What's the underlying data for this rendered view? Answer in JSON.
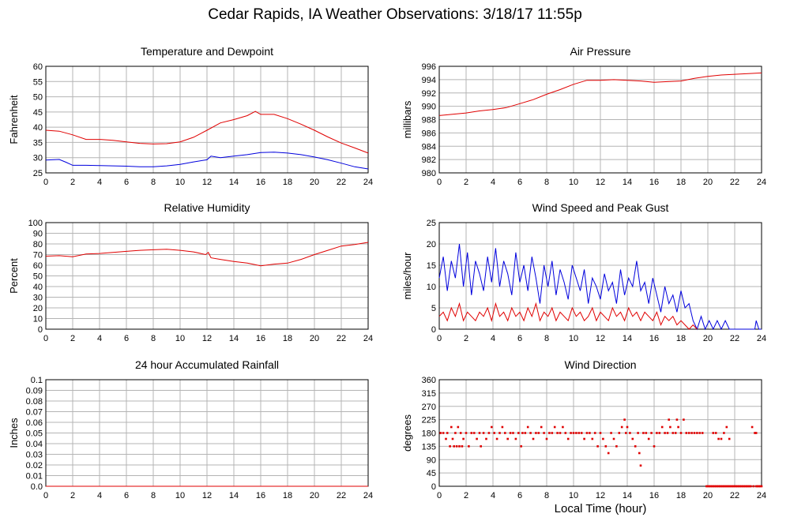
{
  "title": "Cedar Rapids, IA Weather Observations: 3/18/17 11:55p",
  "xlabel": "Local Time (hour)",
  "colors": {
    "red": "#e00000",
    "blue": "#0000dd",
    "grid": "#b4b4b4"
  },
  "chart_data": [
    {
      "type": "line",
      "title": "Temperature and Dewpoint",
      "ylabel": "Fahrenheit",
      "xlim": [
        0,
        24
      ],
      "ylim": [
        25,
        60
      ],
      "yticks": [
        25,
        30,
        35,
        40,
        45,
        50,
        55,
        60
      ],
      "xticks": [
        0,
        2,
        4,
        6,
        8,
        10,
        12,
        14,
        16,
        18,
        20,
        22,
        24
      ],
      "grid": true,
      "series": [
        {
          "color": "#e00000",
          "x": [
            0,
            1,
            2,
            3,
            4,
            5,
            6,
            7,
            8,
            9,
            10,
            11,
            12,
            13,
            14,
            15,
            15.6,
            16,
            17,
            18,
            19,
            20,
            21,
            22,
            23,
            24
          ],
          "y": [
            39,
            38.7,
            37.5,
            36,
            36,
            35.7,
            35.2,
            34.7,
            34.5,
            34.6,
            35.2,
            36.7,
            39,
            41.4,
            42.5,
            43.8,
            45.2,
            44.2,
            44.2,
            42.8,
            41,
            39,
            36.8,
            34.8,
            33.2,
            31.5
          ]
        },
        {
          "color": "#0000dd",
          "x": [
            0,
            1,
            1.5,
            2,
            3,
            4,
            5,
            6,
            7,
            8,
            9,
            10,
            11,
            12,
            12.3,
            13,
            14,
            15,
            16,
            17,
            18,
            19,
            20,
            21,
            22,
            23,
            24
          ],
          "y": [
            29.2,
            29.4,
            28.5,
            27.5,
            27.5,
            27.4,
            27.3,
            27.2,
            27,
            27,
            27.3,
            27.8,
            28.6,
            29.3,
            30.5,
            30,
            30.5,
            31,
            31.7,
            31.8,
            31.5,
            31,
            30.2,
            29.3,
            28.2,
            27,
            26.3
          ]
        }
      ]
    },
    {
      "type": "line",
      "title": "Air Pressure",
      "ylabel": "millibars",
      "xlim": [
        0,
        24
      ],
      "ylim": [
        980,
        996
      ],
      "yticks": [
        980,
        982,
        984,
        986,
        988,
        990,
        992,
        994,
        996
      ],
      "xticks": [
        0,
        2,
        4,
        6,
        8,
        10,
        12,
        14,
        16,
        18,
        20,
        22,
        24
      ],
      "grid": true,
      "series": [
        {
          "color": "#e00000",
          "x": [
            0,
            1,
            2,
            3,
            4,
            5,
            6,
            7,
            8,
            9,
            10,
            11,
            12,
            13,
            14,
            15,
            16,
            17,
            18,
            19,
            20,
            21,
            22,
            23,
            24
          ],
          "y": [
            988.6,
            988.8,
            989,
            989.3,
            989.5,
            989.8,
            990.4,
            991,
            991.8,
            992.5,
            993.3,
            993.9,
            993.9,
            994,
            993.9,
            993.8,
            993.6,
            993.7,
            993.8,
            994.2,
            994.5,
            994.7,
            994.8,
            994.9,
            995
          ]
        }
      ]
    },
    {
      "type": "line",
      "title": "Relative Humidity",
      "ylabel": "Percent",
      "xlim": [
        0,
        24
      ],
      "ylim": [
        0,
        100
      ],
      "yticks": [
        0,
        10,
        20,
        30,
        40,
        50,
        60,
        70,
        80,
        90,
        100
      ],
      "xticks": [
        0,
        2,
        4,
        6,
        8,
        10,
        12,
        14,
        16,
        18,
        20,
        22,
        24
      ],
      "grid": true,
      "series": [
        {
          "color": "#e00000",
          "x": [
            0,
            1,
            2,
            3,
            4,
            5,
            6,
            7,
            8,
            9,
            10,
            11,
            11.9,
            12.1,
            12.3,
            13,
            14,
            15,
            16,
            17,
            18,
            19,
            20,
            21,
            22,
            23,
            24
          ],
          "y": [
            68.5,
            69,
            68,
            70.5,
            71,
            72,
            73,
            74,
            74.5,
            75,
            74,
            72.5,
            70,
            72,
            67,
            65.5,
            63.5,
            62,
            59.5,
            61,
            62,
            65.5,
            70,
            74,
            78,
            79.5,
            81.5
          ]
        }
      ]
    },
    {
      "type": "line",
      "title": "Wind Speed and Peak Gust",
      "ylabel": "miles/hour",
      "xlim": [
        0,
        24
      ],
      "ylim": [
        0,
        25
      ],
      "yticks": [
        0,
        5,
        10,
        15,
        20,
        25
      ],
      "xticks": [
        0,
        2,
        4,
        6,
        8,
        10,
        12,
        14,
        16,
        18,
        20,
        22,
        24
      ],
      "grid": true,
      "series": [
        {
          "color": "#0000dd",
          "x": [
            0,
            0.3,
            0.6,
            0.9,
            1.2,
            1.5,
            1.8,
            2.1,
            2.4,
            2.7,
            3,
            3.3,
            3.6,
            3.9,
            4.2,
            4.5,
            4.8,
            5.1,
            5.4,
            5.7,
            6,
            6.3,
            6.6,
            6.9,
            7.2,
            7.5,
            7.8,
            8.1,
            8.4,
            8.7,
            9,
            9.3,
            9.6,
            9.9,
            10.2,
            10.5,
            10.8,
            11.1,
            11.4,
            11.7,
            12,
            12.3,
            12.6,
            12.9,
            13.2,
            13.5,
            13.8,
            14.1,
            14.4,
            14.7,
            15,
            15.3,
            15.6,
            15.9,
            16.2,
            16.5,
            16.8,
            17.1,
            17.4,
            17.7,
            18,
            18.3,
            18.6,
            18.9,
            19.2,
            19.5,
            19.8,
            20.1,
            20.4,
            20.7,
            21,
            21.3,
            21.6,
            22,
            23,
            23.5,
            23.6,
            23.8,
            24
          ],
          "y": [
            12,
            17,
            9,
            16,
            12,
            20,
            10,
            18,
            8,
            16,
            13,
            9,
            17,
            11,
            19,
            10,
            16,
            13,
            8,
            18,
            11,
            15,
            9,
            17,
            12,
            6,
            15,
            10,
            16,
            8,
            14,
            11,
            7,
            15,
            12,
            9,
            14,
            6,
            12,
            10,
            7,
            13,
            9,
            11,
            6,
            14,
            8,
            12,
            10,
            16,
            9,
            11,
            6,
            12,
            8,
            4,
            10,
            6,
            8,
            4,
            9,
            5,
            6,
            2,
            0,
            3,
            0,
            2,
            0,
            2,
            0,
            2,
            0,
            0,
            0,
            0,
            2,
            0,
            0
          ]
        },
        {
          "color": "#e00000",
          "x": [
            0,
            0.3,
            0.6,
            0.9,
            1.2,
            1.5,
            1.8,
            2.1,
            2.4,
            2.7,
            3,
            3.3,
            3.6,
            3.9,
            4.2,
            4.5,
            4.8,
            5.1,
            5.4,
            5.7,
            6,
            6.3,
            6.6,
            6.9,
            7.2,
            7.5,
            7.8,
            8.1,
            8.4,
            8.7,
            9,
            9.3,
            9.6,
            9.9,
            10.2,
            10.5,
            10.8,
            11.1,
            11.4,
            11.7,
            12,
            12.3,
            12.6,
            12.9,
            13.2,
            13.5,
            13.8,
            14.1,
            14.4,
            14.7,
            15,
            15.3,
            15.6,
            15.9,
            16.2,
            16.5,
            16.8,
            17.1,
            17.4,
            17.7,
            18,
            18.3,
            18.6,
            18.9,
            19.2
          ],
          "y": [
            3,
            4,
            2,
            5,
            3,
            6,
            2,
            4,
            3,
            2,
            4,
            3,
            5,
            2,
            6,
            3,
            4,
            2,
            5,
            3,
            4,
            2,
            5,
            3,
            6,
            2,
            4,
            3,
            5,
            2,
            4,
            3,
            2,
            5,
            3,
            4,
            2,
            3,
            5,
            2,
            4,
            3,
            2,
            5,
            3,
            4,
            2,
            5,
            3,
            4,
            2,
            4,
            3,
            2,
            4,
            1,
            3,
            2,
            3,
            1,
            2,
            1,
            0,
            1,
            0
          ]
        }
      ]
    },
    {
      "type": "line",
      "title": "24 hour Accumulated Rainfall",
      "ylabel": "Inches",
      "xlim": [
        0,
        24
      ],
      "ylim": [
        0,
        0.1
      ],
      "yticks": [
        0.0,
        0.01,
        0.02,
        0.03,
        0.04,
        0.05,
        0.06,
        0.07,
        0.08,
        0.09,
        0.1
      ],
      "ytick_labels": [
        "0.0",
        "0.01",
        "0.02",
        "0.03",
        "0.04",
        "0.05",
        "0.06",
        "0.07",
        "0.08",
        "0.09",
        "0.1"
      ],
      "xticks": [
        0,
        2,
        4,
        6,
        8,
        10,
        12,
        14,
        16,
        18,
        20,
        22,
        24
      ],
      "grid": true,
      "series": [
        {
          "color": "#e00000",
          "x": [
            0,
            24
          ],
          "y": [
            0,
            0
          ]
        }
      ]
    },
    {
      "type": "scatter",
      "title": "Wind Direction",
      "ylabel": "degrees",
      "xlim": [
        0,
        24
      ],
      "ylim": [
        0,
        360
      ],
      "yticks": [
        0,
        45,
        90,
        135,
        180,
        225,
        270,
        315,
        360
      ],
      "xticks": [
        0,
        2,
        4,
        6,
        8,
        10,
        12,
        14,
        16,
        18,
        20,
        22,
        24
      ],
      "grid": true,
      "series": [
        {
          "color": "#e00000",
          "x": [
            0.1,
            0.3,
            0.5,
            0.6,
            0.8,
            0.9,
            1.0,
            1.1,
            1.2,
            1.3,
            1.4,
            1.5,
            1.6,
            1.7,
            1.8,
            2.0,
            2.2,
            2.4,
            2.6,
            2.8,
            3.0,
            3.1,
            3.3,
            3.5,
            3.7,
            3.9,
            4.1,
            4.3,
            4.5,
            4.7,
            4.9,
            5.1,
            5.3,
            5.5,
            5.7,
            5.9,
            6.1,
            6.2,
            6.4,
            6.6,
            6.8,
            7.0,
            7.2,
            7.4,
            7.6,
            7.8,
            8.0,
            8.2,
            8.4,
            8.6,
            8.8,
            9.0,
            9.2,
            9.4,
            9.6,
            9.8,
            10.0,
            10.2,
            10.4,
            10.6,
            10.8,
            11.0,
            11.2,
            11.4,
            11.6,
            11.8,
            12.0,
            12.2,
            12.4,
            12.6,
            12.8,
            13.0,
            13.2,
            13.4,
            13.6,
            13.8,
            13.9,
            14.0,
            14.2,
            14.4,
            14.6,
            14.8,
            14.9,
            15.0,
            15.2,
            15.4,
            15.6,
            15.8,
            16.0,
            16.2,
            16.4,
            16.6,
            16.8,
            17.0,
            17.1,
            17.2,
            17.4,
            17.6,
            17.7,
            17.8,
            18.0,
            18.2,
            18.4,
            18.6,
            18.8,
            19.0,
            19.2,
            19.4,
            19.6,
            20.4,
            20.6,
            20.8,
            21.0,
            21.2,
            21.4,
            21.6,
            23.3,
            23.5,
            23.6
          ],
          "y": [
            180,
            180,
            160,
            180,
            135,
            200,
            160,
            135,
            180,
            135,
            200,
            135,
            180,
            135,
            160,
            180,
            135,
            180,
            180,
            160,
            180,
            135,
            180,
            160,
            180,
            200,
            180,
            160,
            180,
            200,
            180,
            160,
            180,
            180,
            160,
            180,
            135,
            180,
            180,
            200,
            180,
            160,
            180,
            180,
            200,
            180,
            160,
            180,
            180,
            200,
            180,
            180,
            200,
            180,
            160,
            180,
            180,
            180,
            180,
            180,
            160,
            180,
            180,
            160,
            180,
            135,
            180,
            160,
            135,
            112,
            180,
            160,
            135,
            180,
            200,
            225,
            180,
            200,
            180,
            160,
            135,
            180,
            112,
            70,
            180,
            180,
            160,
            180,
            135,
            180,
            180,
            200,
            180,
            180,
            225,
            200,
            180,
            180,
            225,
            200,
            180,
            225,
            180,
            180,
            180,
            180,
            180,
            180,
            180,
            180,
            180,
            160,
            160,
            180,
            200,
            160,
            200,
            180,
            180
          ]
        },
        {
          "color": "#e00000",
          "x": [
            19.9,
            20.0,
            20.1,
            20.2,
            20.3,
            20.4,
            20.5,
            20.6,
            20.7,
            20.8,
            20.9,
            21.0,
            21.1,
            21.2,
            21.3,
            21.4,
            21.5,
            21.6,
            21.7,
            21.8,
            21.9,
            22.0,
            22.1,
            22.2,
            22.3,
            22.4,
            22.5,
            22.6,
            22.7,
            22.8,
            22.9,
            23.0,
            23.1,
            23.2,
            23.4,
            23.6,
            23.7,
            23.8,
            23.9,
            24.0
          ],
          "y": [
            0,
            0,
            0,
            0,
            0,
            0,
            0,
            0,
            0,
            0,
            0,
            0,
            0,
            0,
            0,
            0,
            0,
            0,
            0,
            0,
            0,
            0,
            0,
            0,
            0,
            0,
            0,
            0,
            0,
            0,
            0,
            0,
            0,
            0,
            0,
            0,
            0,
            0,
            0,
            0
          ]
        }
      ]
    }
  ]
}
